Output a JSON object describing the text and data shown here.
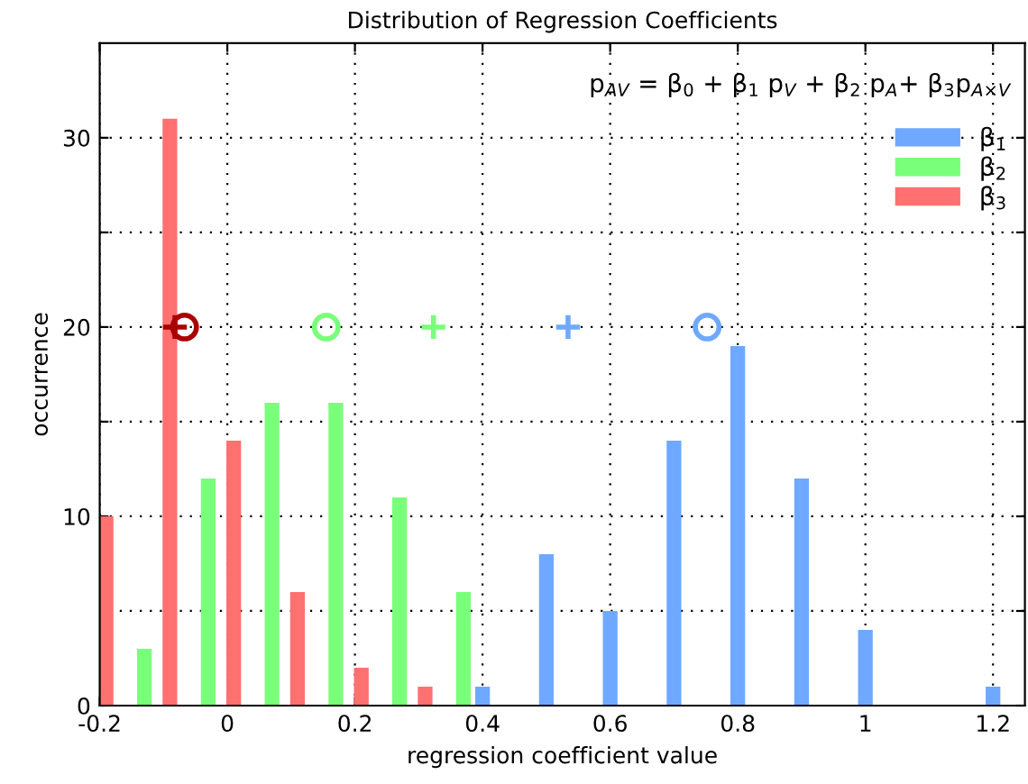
{
  "chart_data": {
    "type": "bar",
    "title": "Distribution of Regression Coefficients",
    "xlabel": "regression coefficient value",
    "ylabel": "occurrence",
    "annotations": [
      "p$_{AV}$ = β$_{0}$ + β$_{1}$ p$_{V}$ + β$_{2}$ p$_{A}$+ β$_{3}$p$_{A×V}$"
    ],
    "series": [
      {
        "name": "β$_{1}$",
        "color": "#6fa8ff",
        "x": [
          0.4,
          0.5,
          0.6,
          0.7,
          0.8,
          0.9,
          1.0,
          1.1,
          1.2
        ],
        "values": [
          1,
          8,
          5,
          14,
          19,
          12,
          4,
          0,
          1
        ]
      },
      {
        "name": "β$_{2}$",
        "color": "#7aff7a",
        "x": [
          -0.13,
          -0.03,
          0.07,
          0.17,
          0.27,
          0.37
        ],
        "values": [
          3,
          12,
          16,
          16,
          11,
          6
        ]
      },
      {
        "name": "β$_{3}$",
        "color": "#ff7070",
        "x": [
          -0.19,
          -0.09,
          0.01,
          0.11,
          0.21,
          0.31
        ],
        "values": [
          10,
          31,
          14,
          6,
          2,
          1
        ]
      },
      {
        "type": "scatter",
        "marker": "circle",
        "color": "#6fa8ff",
        "x": [
          0.752
        ],
        "values": [
          20
        ]
      },
      {
        "type": "scatter",
        "marker": "cross",
        "color": "#6fa8ff",
        "x": [
          0.534
        ],
        "values": [
          20
        ]
      },
      {
        "type": "scatter",
        "marker": "circle",
        "color": "#7aff7a",
        "x": [
          0.155
        ],
        "values": [
          20
        ]
      },
      {
        "type": "scatter",
        "marker": "cross",
        "color": "#7aff7a",
        "x": [
          0.323
        ],
        "values": [
          20
        ]
      },
      {
        "type": "scatter",
        "marker": "circle",
        "color": "#aa0000",
        "x": [
          -0.067
        ],
        "values": [
          20
        ]
      },
      {
        "type": "scatter",
        "marker": "cross",
        "color": "#aa0000",
        "x": [
          -0.082
        ],
        "values": [
          20
        ]
      }
    ],
    "xlim": [
      -0.2,
      1.25
    ],
    "ylim": [
      0,
      35
    ],
    "xticks": [
      -0.2,
      0,
      0.2,
      0.4,
      0.6,
      0.8,
      1,
      1.2
    ],
    "yticks": [
      0,
      {
        "value": 5,
        "label": null
      },
      10,
      {
        "value": 15,
        "label": null
      },
      20,
      {
        "value": 25,
        "label": null
      },
      30
    ],
    "grid": true,
    "legend": "top right"
  }
}
